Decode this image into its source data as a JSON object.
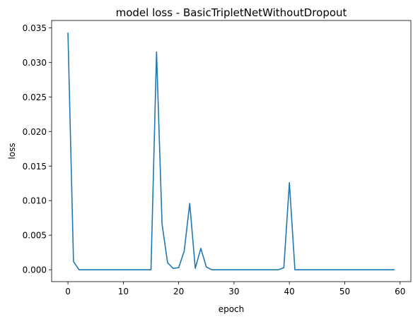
{
  "chart_data": {
    "type": "line",
    "title": "model loss - BasicTripletNetWithoutDropout",
    "xlabel": "epoch",
    "ylabel": "loss",
    "xlim": [
      -2.95,
      61.95
    ],
    "ylim": [
      -0.00172,
      0.03606
    ],
    "xticks": [
      0,
      10,
      20,
      30,
      40,
      50,
      60
    ],
    "xtick_labels": [
      "0",
      "10",
      "20",
      "30",
      "40",
      "50",
      "60"
    ],
    "yticks": [
      0.0,
      0.005,
      0.01,
      0.015,
      0.02,
      0.025,
      0.03,
      0.035
    ],
    "ytick_labels": [
      "0.000",
      "0.005",
      "0.010",
      "0.015",
      "0.020",
      "0.025",
      "0.030",
      "0.035"
    ],
    "grid": false,
    "legend": "none",
    "series": [
      {
        "color": "#1f77b4",
        "x": [
          0,
          1,
          2,
          3,
          4,
          5,
          6,
          7,
          8,
          9,
          10,
          11,
          12,
          13,
          14,
          15,
          16,
          17,
          18,
          19,
          20,
          21,
          22,
          23,
          24,
          25,
          26,
          27,
          28,
          29,
          30,
          31,
          32,
          33,
          34,
          35,
          36,
          37,
          38,
          39,
          40,
          41,
          42,
          43,
          44,
          45,
          46,
          47,
          48,
          49,
          50,
          51,
          52,
          53,
          54,
          55,
          56,
          57,
          58,
          59
        ],
        "values": [
          0.0343,
          0.0012,
          0.0,
          0.0,
          0.0,
          0.0,
          0.0,
          0.0,
          0.0,
          0.0,
          0.0,
          0.0,
          0.0,
          0.0,
          0.0,
          0.0,
          0.0315,
          0.0066,
          0.001,
          0.0002,
          0.0003,
          0.0027,
          0.0096,
          0.0002,
          0.0031,
          0.0004,
          0.0,
          0.0,
          0.0,
          0.0,
          0.0,
          0.0,
          0.0,
          0.0,
          0.0,
          0.0,
          0.0,
          0.0,
          0.0,
          0.0003,
          0.0126,
          0.0,
          0.0,
          0.0,
          0.0,
          0.0,
          0.0,
          0.0,
          0.0,
          0.0,
          0.0,
          0.0,
          0.0,
          0.0,
          0.0,
          0.0,
          0.0,
          0.0,
          0.0,
          0.0
        ]
      }
    ]
  }
}
